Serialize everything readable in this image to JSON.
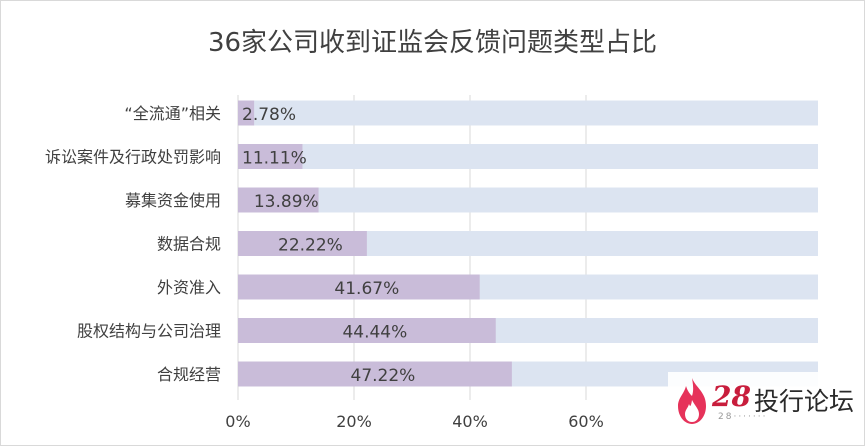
{
  "chart_data": {
    "type": "bar",
    "orientation": "horizontal",
    "title": "36家公司收到证监会反馈问题类型占比",
    "xlabel": "",
    "ylabel": "",
    "xlim": [
      0,
      100
    ],
    "x_ticks": [
      "0%",
      "20%",
      "40%",
      "60%"
    ],
    "categories": [
      "“全流通”相关",
      "诉讼案件及行政处罚影响",
      "募集资金使用",
      "数据合规",
      "外资准入",
      "股权结构与公司治理",
      "合规经营"
    ],
    "values": [
      2.78,
      11.11,
      13.89,
      22.22,
      41.67,
      44.44,
      47.22
    ],
    "value_labels": [
      "2.78%",
      "11.11%",
      "13.89%",
      "22.22%",
      "41.67%",
      "44.44%",
      "47.22%"
    ],
    "colors": {
      "value_bar": "#c9bcd9",
      "background_bar": "#dce4f1",
      "grid": "#d9d9d9",
      "text": "#404040"
    },
    "grid": true
  },
  "watermark": {
    "number": "28",
    "name": "投行论坛",
    "sub": "28·······"
  }
}
